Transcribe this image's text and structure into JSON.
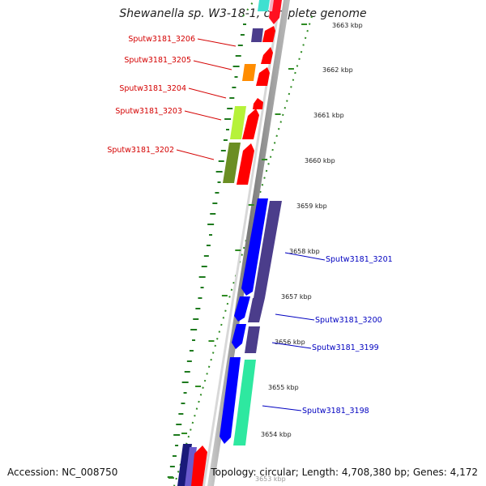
{
  "title": "Shewanella sp. W3-18-1, complete genome",
  "footer": {
    "accession": "Accession: NC_008750",
    "summary": "Topology: circular; Length: 4,708,380 bp; Genes: 4,172"
  },
  "scale": {
    "unit": "kbp",
    "ticks": [
      "3663 kbp",
      "3662 kbp",
      "3661 kbp",
      "3660 kbp",
      "3659 kbp",
      "3658 kbp",
      "3657 kbp",
      "3656 kbp",
      "3655 kbp",
      "3654 kbp",
      "3653 kbp"
    ]
  },
  "gene_labels": [
    {
      "name": "Sputw3181_3206",
      "color": "#d40000"
    },
    {
      "name": "Sputw3181_3205",
      "color": "#d40000"
    },
    {
      "name": "Sputw3181_3204",
      "color": "#d40000"
    },
    {
      "name": "Sputw3181_3203",
      "color": "#d40000"
    },
    {
      "name": "Sputw3181_3202",
      "color": "#d40000"
    },
    {
      "name": "Sputw3181_3201",
      "color": "#0000c0"
    },
    {
      "name": "Sputw3181_3200",
      "color": "#0000c0"
    },
    {
      "name": "Sputw3181_3199",
      "color": "#0000c0"
    },
    {
      "name": "Sputw3181_3198",
      "color": "#0000c0"
    }
  ],
  "colors": {
    "backbone": "#999999",
    "forward_gene": "#ff0000",
    "reverse_gene": "#0000ff",
    "cog_slate": "#483d8b",
    "gc_skew": "#228b22"
  }
}
